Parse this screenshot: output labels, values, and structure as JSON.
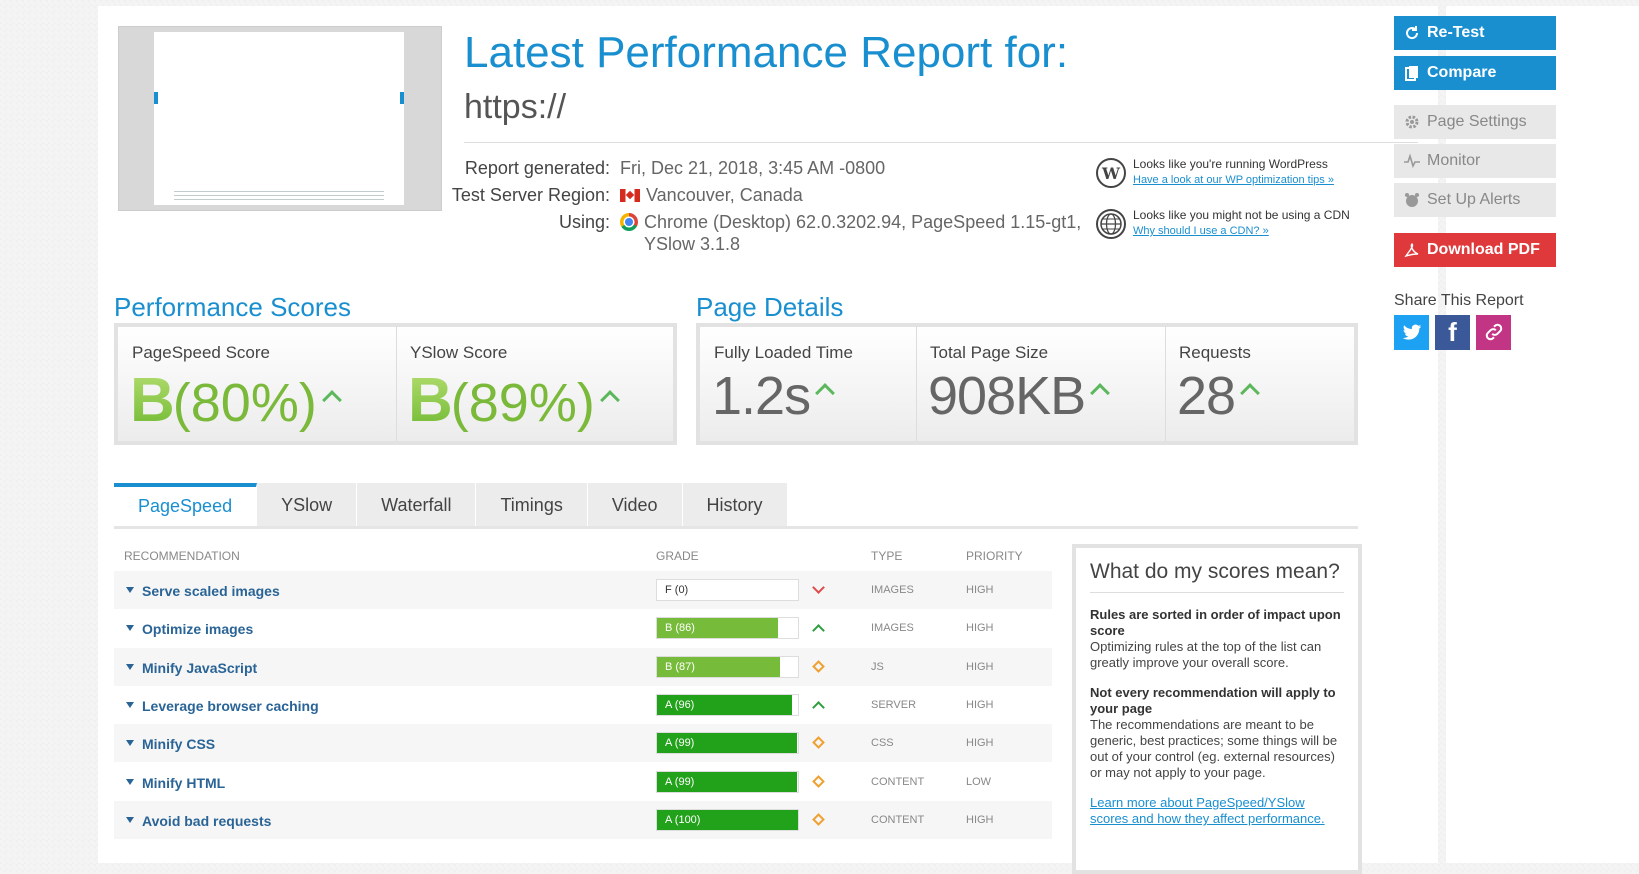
{
  "header": {
    "title": "Latest Performance Report for:",
    "url": "https://",
    "meta": [
      {
        "label": "Report generated:",
        "value": "Fri, Dec 21, 2018, 3:45 AM -0800"
      },
      {
        "label": "Test Server Region:",
        "value": "Vancouver, Canada"
      },
      {
        "label": "Using:",
        "value": "Chrome (Desktop) 62.0.3202.94, PageSpeed 1.15-gt1,",
        "value2": "YSlow 3.1.8"
      }
    ],
    "tips": [
      {
        "text": "Looks like you're running WordPress",
        "link": "Have a look at our WP optimization tips »",
        "icon": "wordpress-icon"
      },
      {
        "text": "Looks like you might not be using a CDN",
        "link": "Why should I use a CDN? »",
        "icon": "globe-icon"
      }
    ]
  },
  "scores": {
    "title": "Performance Scores",
    "pagespeed": {
      "label": "PageSpeed Score",
      "grade": "B",
      "pct": "(80%)"
    },
    "yslow": {
      "label": "YSlow Score",
      "grade": "B",
      "pct": "(89%)"
    }
  },
  "details": {
    "title": "Page Details",
    "loaded": {
      "label": "Fully Loaded Time",
      "value": "1.2s"
    },
    "size": {
      "label": "Total Page Size",
      "value": "908KB"
    },
    "requests": {
      "label": "Requests",
      "value": "28"
    }
  },
  "tabs": [
    "PageSpeed",
    "YSlow",
    "Waterfall",
    "Timings",
    "Video",
    "History"
  ],
  "table": {
    "headers": {
      "recommendation": "Recommendation",
      "grade": "Grade",
      "type": "Type",
      "priority": "Priority"
    },
    "rows": [
      {
        "name": "Serve scaled images",
        "grade": "F (0)",
        "score": 0,
        "trend": "down",
        "type": "IMAGES",
        "priority": "HIGH"
      },
      {
        "name": "Optimize images",
        "grade": "B (86)",
        "score": 86,
        "trend": "up",
        "type": "IMAGES",
        "priority": "HIGH"
      },
      {
        "name": "Minify JavaScript",
        "grade": "B (87)",
        "score": 87,
        "trend": "neutral",
        "type": "JS",
        "priority": "HIGH"
      },
      {
        "name": "Leverage browser caching",
        "grade": "A (96)",
        "score": 96,
        "trend": "up",
        "type": "SERVER",
        "priority": "HIGH"
      },
      {
        "name": "Minify CSS",
        "grade": "A (99)",
        "score": 99,
        "trend": "neutral",
        "type": "CSS",
        "priority": "HIGH"
      },
      {
        "name": "Minify HTML",
        "grade": "A (99)",
        "score": 99,
        "trend": "neutral",
        "type": "CONTENT",
        "priority": "LOW"
      },
      {
        "name": "Avoid bad requests",
        "grade": "A (100)",
        "score": 100,
        "trend": "neutral",
        "type": "CONTENT",
        "priority": "HIGH"
      }
    ]
  },
  "info": {
    "title": "What do my scores mean?",
    "h1": "Rules are sorted in order of impact upon score",
    "p1": "Optimizing rules at the top of the list can greatly improve your overall score.",
    "h2": "Not every recommendation will apply to your page",
    "p2": "The recommendations are meant to be generic, best practices; some things will be out of your control (eg. external resources) or may not apply to your page.",
    "link": "Learn more about PageSpeed/YSlow scores and how they affect performance."
  },
  "sidebar": {
    "retest": "Re-Test",
    "compare": "Compare",
    "page_settings": "Page Settings",
    "monitor": "Monitor",
    "alerts": "Set Up Alerts",
    "download": "Download PDF",
    "share_title": "Share This Report"
  },
  "colors": {
    "accent": "#1a8fd0",
    "grade_a": "#22a11a",
    "grade_b": "#77bb3a",
    "pdf_red": "#e0393c",
    "twitter": "#1da1f2",
    "facebook": "#3b5998",
    "link": "#c13584"
  }
}
